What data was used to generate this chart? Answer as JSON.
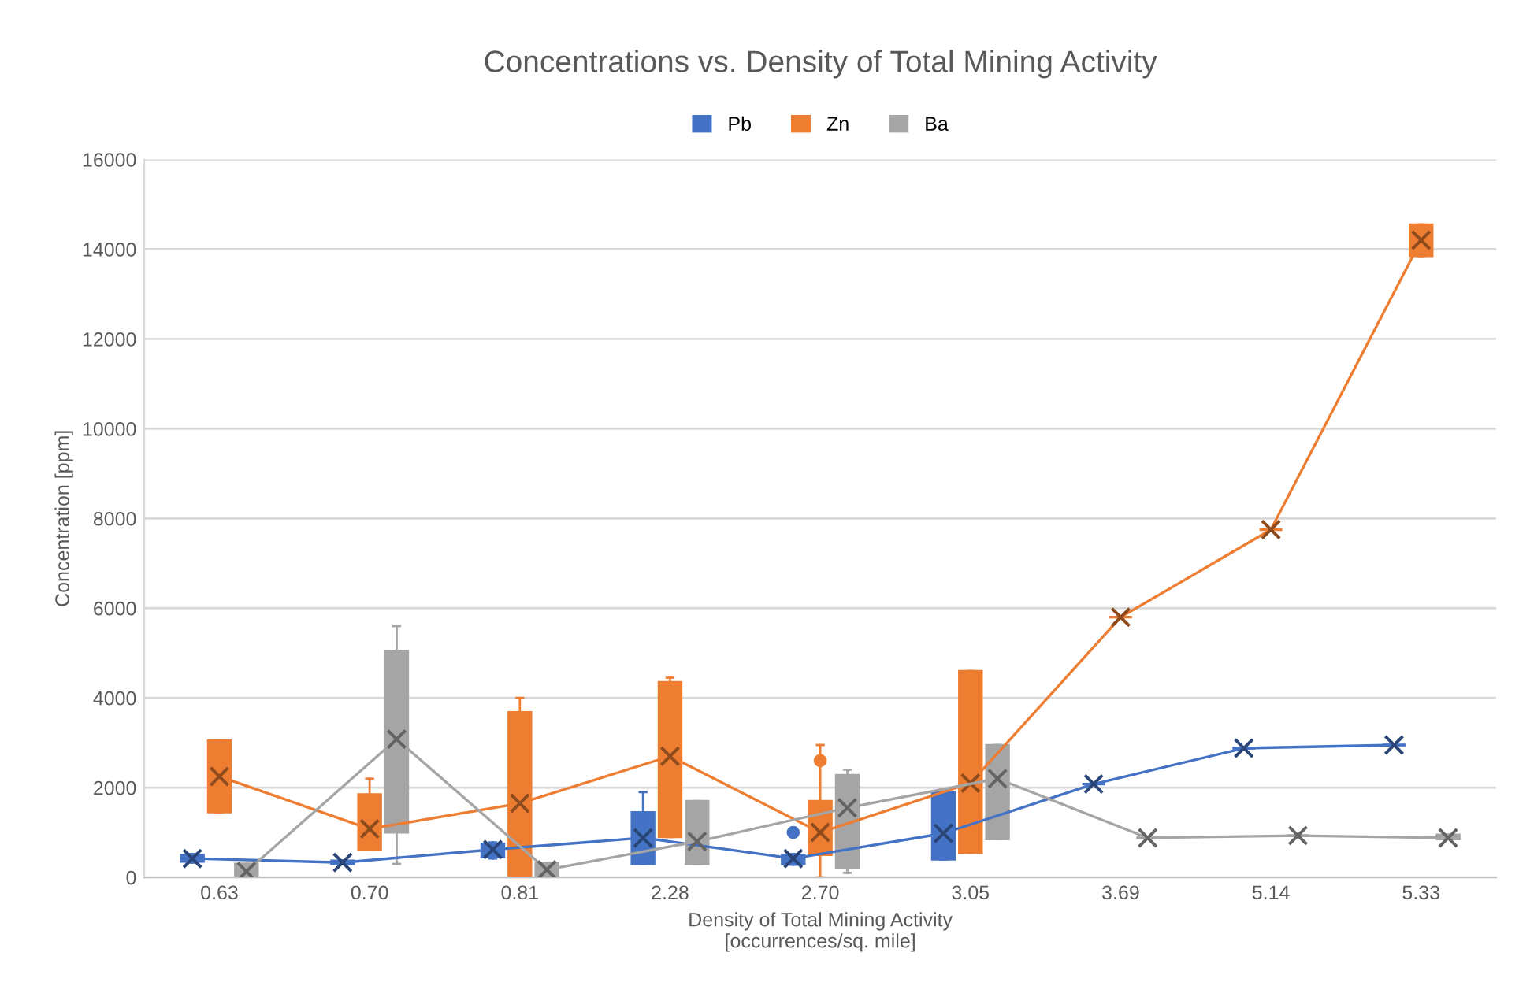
{
  "chart_data": {
    "type": "box",
    "title": "Concentrations vs. Density of Total Mining Activity",
    "xlabel": "Density of Total Mining Activity\n[occurrences/sq. mile]",
    "ylabel": "Concentration [ppm]",
    "categories": [
      "0.63",
      "0.70",
      "0.81",
      "2.28",
      "2.70",
      "3.05",
      "3.69",
      "5.14",
      "5.33"
    ],
    "ylim": [
      0,
      16000
    ],
    "yticks": [
      0,
      2000,
      4000,
      6000,
      8000,
      10000,
      12000,
      14000,
      16000
    ],
    "grid": "y",
    "legend": "top",
    "marker": "cross",
    "series": [
      {
        "name": "Pb",
        "color": "#4472c4",
        "boxes": [
          {
            "low": 330,
            "q1": 350,
            "median": 420,
            "q3": 500,
            "high": 520
          },
          {
            "low": 290,
            "q1": 300,
            "median": 330,
            "q3": 370,
            "high": 380
          },
          {
            "low": 420,
            "q1": 450,
            "median": 600,
            "q3": 750,
            "high": 780
          },
          {
            "low": 300,
            "q1": 300,
            "median": 800,
            "q3": 1450,
            "high": 1900
          },
          {
            "low": 280,
            "q1": 300,
            "median": 400,
            "q3": 500,
            "high": 520,
            "outliers": [
              1000
            ]
          },
          {
            "low": 400,
            "q1": 400,
            "median": 800,
            "q3": 1900,
            "high": 1900
          },
          {
            "low": 2080,
            "q1": 2080,
            "median": 2080,
            "q3": 2080,
            "high": 2080
          },
          {
            "low": 2880,
            "q1": 2880,
            "median": 2880,
            "q3": 2880,
            "high": 2880
          },
          {
            "low": 2950,
            "q1": 2950,
            "median": 2950,
            "q3": 2950,
            "high": 2950
          }
        ]
      },
      {
        "name": "Zn",
        "color": "#ed7d31",
        "boxes": [
          {
            "low": 1450,
            "q1": 1450,
            "median": 2250,
            "q3": 3050,
            "high": 3050
          },
          {
            "low": 620,
            "q1": 620,
            "median": 750,
            "q3": 1850,
            "high": 2200
          },
          {
            "low": 0,
            "q1": 20,
            "median": 1350,
            "q3": 3680,
            "high": 4000
          },
          {
            "low": 900,
            "q1": 900,
            "median": 2700,
            "q3": 4350,
            "high": 4450
          },
          {
            "low": 0,
            "q1": 500,
            "median": 1000,
            "q3": 1700,
            "high": 2950,
            "outliers": [
              2600
            ]
          },
          {
            "low": 550,
            "q1": 550,
            "median": 1100,
            "q3": 4600,
            "high": 4600
          },
          {
            "low": 5800,
            "q1": 5800,
            "median": 5800,
            "q3": 5800,
            "high": 5800
          },
          {
            "low": 7750,
            "q1": 7750,
            "median": 7750,
            "q3": 7750,
            "high": 7750
          },
          {
            "low": 13850,
            "q1": 13850,
            "median": 14200,
            "q3": 14550,
            "high": 14550
          }
        ]
      },
      {
        "name": "Ba",
        "color": "#a5a5a5",
        "boxes": [
          {
            "low": 20,
            "q1": 20,
            "median": 130,
            "q3": 300,
            "high": 300
          },
          {
            "low": 300,
            "q1": 1000,
            "median": 3100,
            "q3": 5050,
            "high": 5600
          },
          {
            "low": 20,
            "q1": 20,
            "median": 170,
            "q3": 320,
            "high": 320
          },
          {
            "low": 300,
            "q1": 300,
            "median": 850,
            "q3": 1700,
            "high": 1700
          },
          {
            "low": 100,
            "q1": 200,
            "median": 1550,
            "q3": 2280,
            "high": 2400
          },
          {
            "low": 850,
            "q1": 850,
            "median": 2200,
            "q3": 2950,
            "high": 2950
          },
          {
            "low": 880,
            "q1": 880,
            "median": 880,
            "q3": 880,
            "high": 880
          },
          {
            "low": 930,
            "q1": 930,
            "median": 930,
            "q3": 930,
            "high": 930
          },
          {
            "low": 850,
            "q1": 850,
            "median": 880,
            "q3": 950,
            "high": 950
          }
        ]
      },
      {
        "type": "line",
        "color": "#4472c4",
        "values": [
          420,
          330,
          620,
          880,
          420,
          980,
          2080,
          2880,
          2950
        ]
      },
      {
        "type": "line",
        "color": "#ed7d31",
        "values": [
          2250,
          1080,
          1650,
          2700,
          1000,
          2100,
          5800,
          7750,
          14200
        ]
      },
      {
        "type": "line",
        "color": "#a5a5a5",
        "values": [
          130,
          3080,
          170,
          800,
          1550,
          2200,
          880,
          930,
          880
        ]
      }
    ]
  }
}
